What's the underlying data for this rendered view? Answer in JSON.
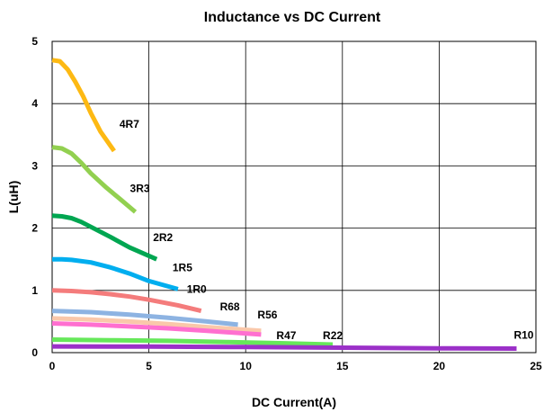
{
  "chart_data": {
    "type": "line",
    "title": "Inductance vs DC Current",
    "xlabel": "DC Current(A)",
    "ylabel": "L(uH)",
    "xlim": [
      0,
      25
    ],
    "ylim": [
      0,
      5
    ],
    "x_ticks": [
      "0",
      "5",
      "10",
      "15",
      "20",
      "25"
    ],
    "y_ticks": [
      "0",
      "1",
      "2",
      "3",
      "4",
      "5"
    ],
    "grid": true,
    "legend": "none",
    "series": [
      {
        "name": "4R7",
        "color": "#FDB913",
        "points": [
          [
            0,
            4.7
          ],
          [
            0.4,
            4.68
          ],
          [
            0.8,
            4.55
          ],
          [
            1.2,
            4.35
          ],
          [
            1.6,
            4.12
          ],
          [
            2.0,
            3.85
          ],
          [
            2.5,
            3.55
          ],
          [
            3.2,
            3.24
          ]
        ]
      },
      {
        "name": "3R3",
        "color": "#92D050",
        "points": [
          [
            0,
            3.3
          ],
          [
            0.5,
            3.28
          ],
          [
            1.0,
            3.2
          ],
          [
            1.5,
            3.05
          ],
          [
            2.0,
            2.88
          ],
          [
            2.8,
            2.65
          ],
          [
            3.5,
            2.47
          ],
          [
            4.3,
            2.26
          ]
        ]
      },
      {
        "name": "2R2",
        "color": "#00A651",
        "points": [
          [
            0,
            2.2
          ],
          [
            0.5,
            2.19
          ],
          [
            1.0,
            2.16
          ],
          [
            1.5,
            2.1
          ],
          [
            2.0,
            2.02
          ],
          [
            3.0,
            1.86
          ],
          [
            4.0,
            1.69
          ],
          [
            5.4,
            1.5
          ]
        ]
      },
      {
        "name": "1R5",
        "color": "#00AEEF",
        "points": [
          [
            0,
            1.5
          ],
          [
            0.5,
            1.5
          ],
          [
            1.0,
            1.49
          ],
          [
            2.0,
            1.45
          ],
          [
            3.0,
            1.37
          ],
          [
            4.0,
            1.27
          ],
          [
            5.0,
            1.15
          ],
          [
            6.5,
            1.02
          ]
        ]
      },
      {
        "name": "1R0",
        "color": "#F47C7C",
        "points": [
          [
            0,
            1.0
          ],
          [
            1.0,
            0.99
          ],
          [
            2.0,
            0.97
          ],
          [
            3.0,
            0.94
          ],
          [
            4.0,
            0.9
          ],
          [
            5.0,
            0.85
          ],
          [
            6.5,
            0.76
          ],
          [
            7.7,
            0.67
          ]
        ]
      },
      {
        "name": "R68",
        "color": "#8DB3E2",
        "points": [
          [
            0,
            0.67
          ],
          [
            2.0,
            0.65
          ],
          [
            4.0,
            0.61
          ],
          [
            6.0,
            0.56
          ],
          [
            8.0,
            0.5
          ],
          [
            9.6,
            0.45
          ]
        ]
      },
      {
        "name": "R56",
        "color": "#FAC8AA",
        "points": [
          [
            0,
            0.55
          ],
          [
            2.0,
            0.53
          ],
          [
            4.0,
            0.5
          ],
          [
            6.0,
            0.46
          ],
          [
            8.0,
            0.41
          ],
          [
            10.8,
            0.35
          ]
        ]
      },
      {
        "name": "R47",
        "color": "#FF6FD0",
        "points": [
          [
            0,
            0.47
          ],
          [
            2.0,
            0.45
          ],
          [
            4.0,
            0.42
          ],
          [
            6.0,
            0.39
          ],
          [
            8.0,
            0.35
          ],
          [
            10.8,
            0.29
          ]
        ]
      },
      {
        "name": "R22",
        "color": "#66E85A",
        "points": [
          [
            0,
            0.21
          ],
          [
            3.0,
            0.2
          ],
          [
            6.0,
            0.19
          ],
          [
            9.0,
            0.17
          ],
          [
            12.0,
            0.15
          ],
          [
            14.5,
            0.13
          ]
        ]
      },
      {
        "name": "R10",
        "color": "#9B30C8",
        "points": [
          [
            0,
            0.1
          ],
          [
            5.0,
            0.097
          ],
          [
            10.0,
            0.09
          ],
          [
            15.0,
            0.08
          ],
          [
            20.0,
            0.07
          ],
          [
            24.0,
            0.065
          ]
        ]
      }
    ]
  }
}
